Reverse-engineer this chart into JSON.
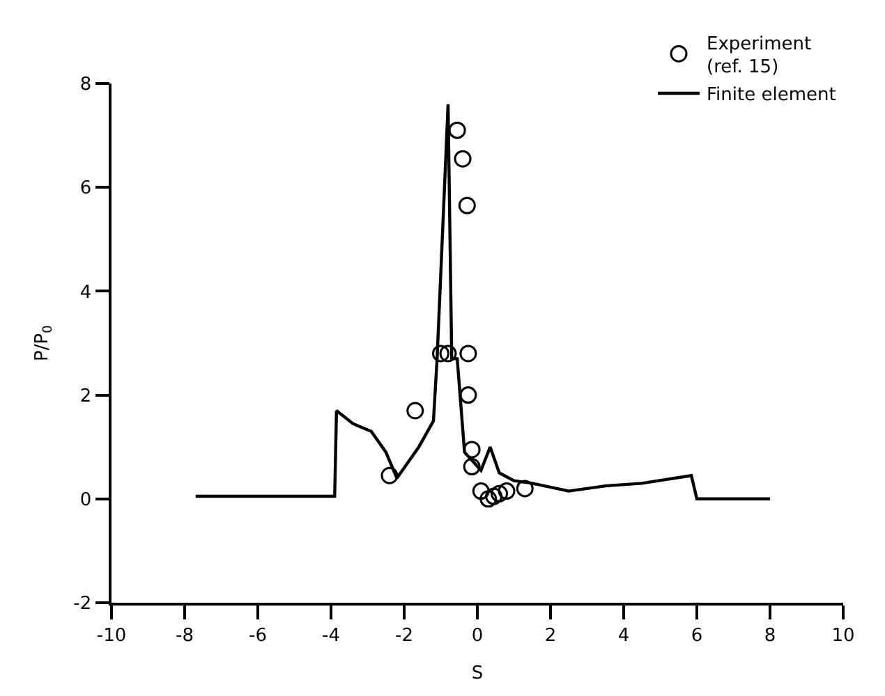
{
  "chart_data": {
    "type": "line",
    "xlabel": "S",
    "ylabel": "P/P$_{0}$",
    "xlim": [
      -10,
      10
    ],
    "ylim": [
      -2,
      8
    ],
    "xticks": [
      -10,
      -8,
      -6,
      -4,
      -2,
      0,
      2,
      4,
      6,
      8,
      10
    ],
    "yticks": [
      -2,
      0,
      2,
      4,
      6,
      8
    ],
    "legend": "top right",
    "series": [
      {
        "name": "Experiment\n(ref. 15)",
        "type": "scatter",
        "marker": "circle",
        "color": "#000000",
        "x": [
          -0.55,
          -0.4,
          -0.28,
          -1.0,
          -0.8,
          -0.25,
          -0.25,
          -1.7,
          -2.4,
          -0.15,
          -0.15,
          0.1,
          0.3,
          0.45,
          0.6,
          0.8,
          1.3
        ],
        "values": [
          7.1,
          6.55,
          5.65,
          2.8,
          2.8,
          2.8,
          2.0,
          1.7,
          0.45,
          0.95,
          0.62,
          0.15,
          0.0,
          0.05,
          0.1,
          0.15,
          0.2
        ]
      },
      {
        "name": "Finite element",
        "marker": "none",
        "line_style": "solid",
        "color": "#000000",
        "x": [
          -7.7,
          -3.9,
          -3.85,
          -3.4,
          -2.9,
          -2.5,
          -2.2,
          -1.6,
          -1.2,
          -1.1,
          -0.8,
          -0.7,
          -0.55,
          -0.35,
          0.1,
          0.35,
          0.6,
          1.0,
          1.5,
          2.5,
          3.5,
          4.5,
          5.85,
          6.0,
          8.0
        ],
        "values": [
          0.05,
          0.05,
          1.7,
          1.45,
          1.3,
          0.9,
          0.4,
          1.0,
          1.5,
          2.7,
          7.6,
          2.7,
          2.7,
          0.9,
          0.55,
          1.0,
          0.5,
          0.35,
          0.3,
          0.15,
          0.25,
          0.3,
          0.45,
          0.0,
          0.0
        ]
      }
    ]
  }
}
